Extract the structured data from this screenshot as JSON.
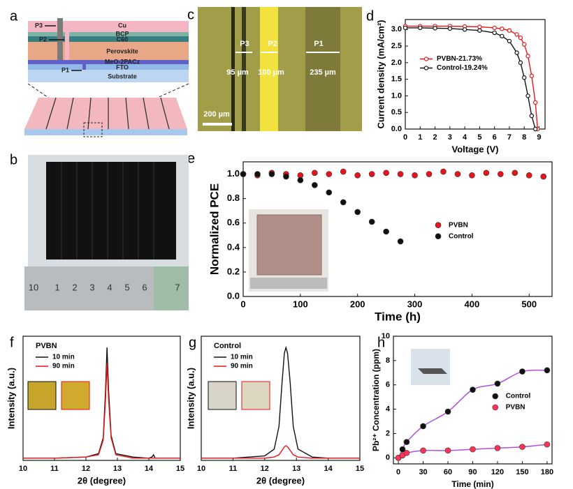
{
  "panel_labels": [
    "a",
    "b",
    "c",
    "d",
    "e",
    "f",
    "g",
    "h"
  ],
  "device_stack": {
    "layers": [
      "Cu",
      "BCP",
      "C60",
      "Perovskite",
      "MeO-2PACz",
      "FTO",
      "Substrate"
    ],
    "scribes": [
      "P1",
      "P2",
      "P3"
    ]
  },
  "micrograph": {
    "scribes": [
      "P3",
      "P2",
      "P1"
    ],
    "widths": [
      "95 µm",
      "100 µm",
      "235 µm"
    ],
    "scale_bar": "200 µm"
  },
  "ruler": {
    "ticks": [
      "10",
      "1",
      "2",
      "3",
      "4",
      "5",
      "6",
      "7"
    ]
  },
  "chart_data": [
    {
      "type": "line",
      "markers": true,
      "xlabel": "Voltage (V)",
      "ylabel": "Current density (mA/cm²)",
      "x": [
        0,
        1,
        2,
        3,
        4,
        5,
        6,
        6.5,
        7,
        7.5,
        7.75,
        8,
        8.25,
        8.5,
        8.75,
        8.9
      ],
      "series": [
        {
          "name": "PVBN-21.73%",
          "color": "#e8141a",
          "values": [
            3.1,
            3.1,
            3.1,
            3.1,
            3.09,
            3.08,
            3.05,
            3.02,
            2.97,
            2.85,
            2.75,
            2.55,
            2.2,
            1.6,
            0.8,
            0
          ]
        },
        {
          "name": "Control-19.24%",
          "color": "#111111",
          "values": [
            3.05,
            3.05,
            3.04,
            3.03,
            3.0,
            2.97,
            2.9,
            2.8,
            2.65,
            2.3,
            2.0,
            1.55,
            1.0,
            0.4,
            0,
            null
          ]
        }
      ],
      "xlim": [
        0,
        9.4
      ],
      "xticks": [
        0,
        1,
        2,
        3,
        4,
        5,
        6,
        7,
        8,
        9
      ],
      "ylim": [
        0,
        3.3
      ],
      "yticks": [
        {
          "value": 0,
          "label": "0.0"
        },
        0.5,
        {
          "value": 1,
          "label": "1.0"
        },
        1.5,
        {
          "value": 2,
          "label": "2.0"
        },
        2.5,
        {
          "value": 3,
          "label": "3.0"
        }
      ],
      "legend": "center left"
    },
    {
      "type": "scatter",
      "xlabel": "Time (h)",
      "ylabel": "Normalized PCE",
      "x": [
        0,
        25,
        50,
        75,
        100,
        125,
        150,
        175,
        200,
        225,
        250,
        275,
        300,
        325,
        350,
        375,
        400,
        425,
        450,
        475,
        500,
        525
      ],
      "series": [
        {
          "name": "PVBN",
          "color": "#e8141a",
          "values": [
            1.0,
            0.99,
            1.01,
            1.0,
            0.99,
            1.01,
            1.0,
            1.02,
            0.99,
            1.0,
            1.01,
            1.0,
            0.99,
            1.0,
            1.02,
            1.0,
            0.99,
            1.01,
            1.0,
            1.01,
            0.99,
            0.98
          ]
        },
        {
          "name": "Control",
          "color": "#111111",
          "values": [
            1.0,
            1.0,
            1.0,
            0.98,
            0.95,
            0.91,
            0.85,
            0.77,
            0.69,
            0.61,
            0.53,
            0.45,
            null,
            null,
            null,
            null,
            null,
            null,
            null,
            null,
            null,
            null
          ]
        }
      ],
      "xlim": [
        0,
        540
      ],
      "xticks": [
        0,
        100,
        200,
        300,
        400,
        500
      ],
      "ylim": [
        0,
        1.1
      ],
      "yticks": [
        {
          "value": 0,
          "label": "0.0"
        },
        0.2,
        0.4,
        0.6,
        0.8,
        {
          "value": 1,
          "label": "1.0"
        }
      ],
      "legend": "center right"
    },
    {
      "type": "line",
      "xlabel": "2θ (degree)",
      "ylabel": "Intensity (a.u.)",
      "legend_title": "PVBN",
      "x": [
        10,
        11,
        12,
        12.4,
        12.55,
        12.62,
        12.67,
        12.72,
        12.8,
        12.95,
        13.5,
        14,
        14.1,
        14.15,
        14.2,
        15
      ],
      "series": [
        {
          "name": "10 min",
          "color": "#111111",
          "values": [
            0.02,
            0.02,
            0.03,
            0.06,
            0.2,
            0.6,
            1.0,
            0.62,
            0.22,
            0.06,
            0.03,
            0.02,
            0.03,
            0.05,
            0.02,
            0.02
          ]
        },
        {
          "name": "90 min",
          "color": "#e8141a",
          "values": [
            0.02,
            0.02,
            0.03,
            0.05,
            0.18,
            0.52,
            0.86,
            0.54,
            0.2,
            0.05,
            0.02,
            0.02,
            0.02,
            0.02,
            0.02,
            0.02
          ]
        }
      ],
      "xlim": [
        10,
        15
      ],
      "xticks": [
        10,
        11,
        12,
        13,
        14,
        15
      ],
      "ylim": [
        0,
        1.1
      ],
      "legend": "upper left"
    },
    {
      "type": "line",
      "xlabel": "2θ (degree)",
      "ylabel": "Intensity (a.u.)",
      "legend_title": "Control",
      "x": [
        10,
        11,
        12,
        12.3,
        12.45,
        12.55,
        12.62,
        12.67,
        12.72,
        12.8,
        12.9,
        13.05,
        13.5,
        14,
        15
      ],
      "series": [
        {
          "name": "10 min",
          "color": "#111111",
          "values": [
            0.02,
            0.02,
            0.04,
            0.1,
            0.3,
            0.7,
            0.95,
            1.0,
            0.95,
            0.7,
            0.3,
            0.1,
            0.03,
            0.02,
            0.02
          ]
        },
        {
          "name": "90 min",
          "color": "#e8141a",
          "values": [
            0.02,
            0.02,
            0.02,
            0.03,
            0.05,
            0.09,
            0.12,
            0.13,
            0.12,
            0.09,
            0.05,
            0.03,
            0.02,
            0.02,
            0.02
          ]
        }
      ],
      "xlim": [
        10,
        15
      ],
      "xticks": [
        10,
        11,
        12,
        13,
        14,
        15
      ],
      "ylim": [
        0,
        1.1
      ],
      "legend": "upper left"
    },
    {
      "type": "scatter",
      "xlabel": "Time (min)",
      "ylabel": "Pb²⁺ Concentration (ppm)",
      "fit_color": "#b050e0",
      "x": [
        0,
        5,
        10,
        30,
        60,
        90,
        120,
        150,
        180
      ],
      "series": [
        {
          "name": "Control",
          "color": "#111111",
          "values": [
            0,
            0.7,
            1.3,
            2.6,
            3.8,
            5.6,
            6.1,
            7.1,
            7.2
          ]
        },
        {
          "name": "PVBN",
          "color": "#ff3355",
          "values": [
            0,
            0.2,
            0.4,
            0.6,
            0.6,
            0.7,
            0.8,
            0.9,
            1.1
          ]
        }
      ],
      "xlim": [
        -6,
        186
      ],
      "xticks": [
        0,
        30,
        60,
        90,
        120,
        150,
        180
      ],
      "ylim": [
        -0.5,
        10
      ],
      "yticks": [
        0,
        2,
        4,
        6,
        8,
        10
      ],
      "legend": "center right"
    }
  ]
}
